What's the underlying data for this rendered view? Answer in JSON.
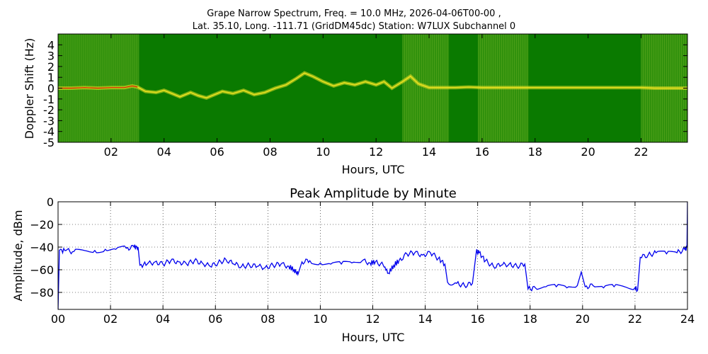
{
  "figure": {
    "title_line1": "Grape Narrow Spectrum, Freq. = 10.0 MHz, 2026-04-06T00-00 ,",
    "title_line2": "Lat.  35.10, Long. -111.71 (GridDM45dc) Station: W7LUX Subchannel 0"
  },
  "colors": {
    "spectrogram_background": "#0a7a00",
    "spectrogram_noise": "#3f9a10",
    "trace_yellow": "#e8e020",
    "trace_red": "#e02000",
    "amplitude_line": "#0000ee"
  },
  "chart_data": [
    {
      "type": "heatmap",
      "title": "",
      "xlabel": "Hours, UTC",
      "ylabel": "Doppler Shift (Hz)",
      "xlim": [
        0,
        23.75
      ],
      "ylim": [
        -5,
        5
      ],
      "x_tick_labels": [
        "02",
        "04",
        "06",
        "08",
        "10",
        "12",
        "14",
        "16",
        "18",
        "20",
        "22"
      ],
      "x_ticks": [
        2,
        4,
        6,
        8,
        10,
        12,
        14,
        16,
        18,
        20,
        22
      ],
      "y_tick_labels": [
        "-5",
        "-4",
        "-3",
        "-2",
        "-1",
        "0",
        "1",
        "2",
        "3",
        "4"
      ],
      "y_ticks": [
        -5,
        -4,
        -3,
        -2,
        -1,
        0,
        1,
        2,
        3,
        4
      ],
      "grid": false,
      "noisy_segments_hours": [
        [
          0,
          3.05
        ],
        [
          13.0,
          14.75
        ],
        [
          15.85,
          17.75
        ],
        [
          22.0,
          23.75
        ]
      ],
      "doppler_trace": {
        "hours": [
          0,
          0.5,
          1.0,
          1.5,
          2.0,
          2.5,
          2.8,
          3.0,
          3.3,
          3.7,
          4.0,
          4.3,
          4.6,
          5.0,
          5.3,
          5.6,
          5.9,
          6.2,
          6.6,
          7.0,
          7.4,
          7.8,
          8.2,
          8.6,
          9.0,
          9.3,
          9.6,
          10.0,
          10.4,
          10.8,
          11.2,
          11.6,
          12.0,
          12.3,
          12.6,
          13.0,
          13.3,
          13.6,
          14.0,
          14.5,
          15.0,
          15.5,
          16.0,
          16.5,
          17.0,
          17.5,
          18.0,
          19.0,
          20.0,
          21.0,
          22.0,
          22.5,
          23.0,
          23.75
        ],
        "doppler_hz": [
          0.0,
          0.0,
          0.05,
          0.0,
          0.05,
          0.05,
          0.2,
          0.1,
          -0.3,
          -0.4,
          -0.2,
          -0.5,
          -0.8,
          -0.4,
          -0.7,
          -0.9,
          -0.6,
          -0.3,
          -0.5,
          -0.2,
          -0.6,
          -0.4,
          0.0,
          0.3,
          0.9,
          1.4,
          1.1,
          0.6,
          0.2,
          0.5,
          0.3,
          0.6,
          0.3,
          0.6,
          0.0,
          0.6,
          1.1,
          0.4,
          0.05,
          0.05,
          0.05,
          0.1,
          0.05,
          0.05,
          0.05,
          0.05,
          0.05,
          0.05,
          0.05,
          0.05,
          0.05,
          0.0,
          0.0,
          0.0
        ]
      }
    },
    {
      "type": "line",
      "title": "Peak Amplitude by Minute",
      "xlabel": "Hours, UTC",
      "ylabel": "Amplitude, dBm",
      "xlim": [
        0,
        24
      ],
      "ylim": [
        -95,
        0
      ],
      "x_tick_labels": [
        "00",
        "02",
        "04",
        "06",
        "08",
        "10",
        "12",
        "14",
        "16",
        "18",
        "20",
        "22",
        "24"
      ],
      "x_ticks": [
        0,
        2,
        4,
        6,
        8,
        10,
        12,
        14,
        16,
        18,
        20,
        22,
        24
      ],
      "y_tick_labels": [
        "0",
        "−20",
        "−40",
        "−60",
        "−80"
      ],
      "y_ticks": [
        0,
        -20,
        -40,
        -60,
        -80
      ],
      "grid": true,
      "series": [
        {
          "x": [
            0,
            0.05,
            0.3,
            0.6,
            1.0,
            1.4,
            1.8,
            2.2,
            2.6,
            2.9,
            3.05,
            3.12,
            3.4,
            3.7,
            4.0,
            4.3,
            4.6,
            4.9,
            5.2,
            5.5,
            5.8,
            6.1,
            6.4,
            6.7,
            7.0,
            7.3,
            7.6,
            7.9,
            8.2,
            8.5,
            8.8,
            9.0,
            9.15,
            9.3,
            9.6,
            10.0,
            10.4,
            10.8,
            11.2,
            11.6,
            11.9,
            12.1,
            12.4,
            12.6,
            12.8,
            13.0,
            13.3,
            13.6,
            13.9,
            14.2,
            14.5,
            14.75,
            14.85,
            15.2,
            15.5,
            15.8,
            15.95,
            16.05,
            16.3,
            16.6,
            16.9,
            17.2,
            17.5,
            17.8,
            17.92,
            18.2,
            18.6,
            19.0,
            19.4,
            19.8,
            19.95,
            20.1,
            20.4,
            20.8,
            21.2,
            21.6,
            22.0,
            22.1,
            22.2,
            22.5,
            22.8,
            23.2,
            23.6,
            23.9,
            23.98,
            24.0
          ],
          "y": [
            -95,
            -43,
            -43,
            -44,
            -43,
            -43,
            -42,
            -42,
            -41,
            -40,
            -40,
            -56,
            -55,
            -53,
            -55,
            -52,
            -53,
            -55,
            -52,
            -54,
            -57,
            -54,
            -51,
            -55,
            -57,
            -56,
            -57,
            -58,
            -56,
            -55,
            -57,
            -60,
            -64,
            -53,
            -52,
            -54,
            -55,
            -55,
            -54,
            -52,
            -54,
            -53,
            -56,
            -63,
            -56,
            -52,
            -46,
            -45,
            -47,
            -45,
            -50,
            -55,
            -71,
            -72,
            -74,
            -72,
            -44,
            -45,
            -52,
            -57,
            -56,
            -55,
            -57,
            -55,
            -77,
            -76,
            -75,
            -75,
            -76,
            -74,
            -62,
            -75,
            -74,
            -76,
            -75,
            -75,
            -76,
            -78,
            -49,
            -47,
            -45,
            -46,
            -45,
            -42,
            -40,
            0
          ]
        }
      ]
    }
  ]
}
